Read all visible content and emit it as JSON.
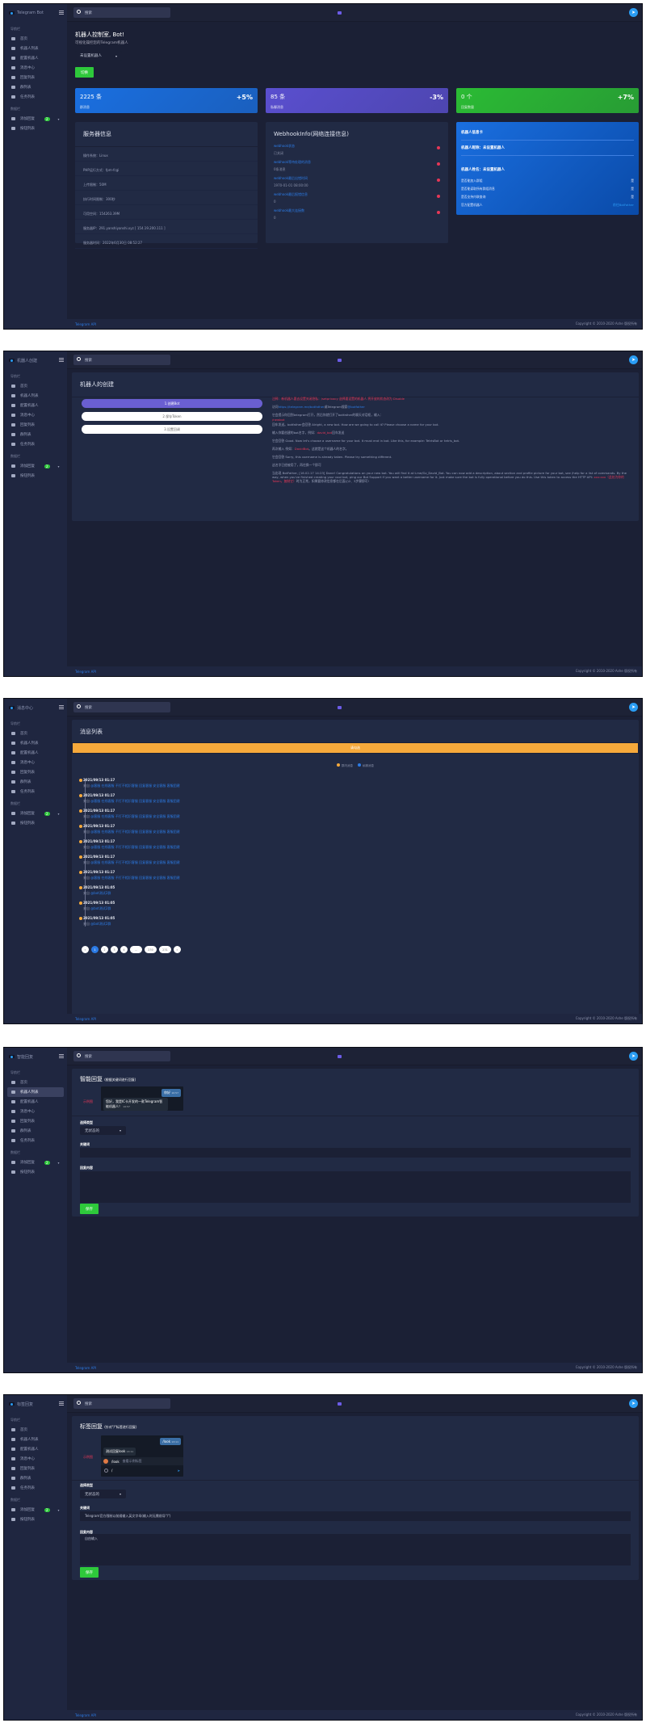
{
  "sidebar": {
    "section1": "导航栏",
    "section2": "数据栏",
    "items": [
      {
        "label": "首页",
        "icon": "robot-icon"
      },
      {
        "label": "机器人列表",
        "icon": "gear-circle-icon"
      },
      {
        "label": "配置机器人",
        "icon": "cogs-icon"
      },
      {
        "label": "消息中心",
        "icon": "message-icon"
      },
      {
        "label": "回复列表",
        "icon": "keyboard-icon"
      },
      {
        "label": "群列表",
        "icon": "group-icon"
      },
      {
        "label": "任务列表",
        "icon": "hourglass-icon"
      }
    ],
    "items2": [
      {
        "label": "添加回复",
        "icon": "chat-icon",
        "badge": "2"
      },
      {
        "label": "按钮列表",
        "icon": "note-icon"
      }
    ]
  },
  "topbar": {
    "search_placeholder": "搜索"
  },
  "footer": {
    "api": "Telegram API",
    "copyright": "Copyright © 2010-2020 Ashe 版权所有"
  },
  "screens": [
    {
      "brand": "Telegram Bot"
    },
    {
      "brand": "机器人创建"
    },
    {
      "brand": "消息中心"
    },
    {
      "brand": "智能回复",
      "active": 1
    },
    {
      "brand": "标签回复"
    }
  ],
  "dashboard": {
    "title": "机器人控制室, Bot!",
    "subtitle": "可视化操控您的Telegram机器人",
    "select_value": "未设置机器人",
    "switch_button": "切换",
    "stats": [
      {
        "value": "2225 条",
        "label": "群消息",
        "pct": "+5%",
        "color": "#1a6fe0"
      },
      {
        "value": "85 条",
        "label": "私聊消息",
        "pct": "-3%",
        "color": "#5a4fcf"
      },
      {
        "value": "0 个",
        "label": "回复数量",
        "pct": "+7%",
        "color": "#2bbb34"
      }
    ],
    "server": {
      "title": "服务器信息",
      "rows": [
        "操作系统：Linux",
        "PHP运行方式：fpm-fcgi",
        "上传限制：50M",
        "执行时间限制：300秒",
        "可用空间：154263.39M",
        "服务器IP：291.yanshiyanshi.xyz [ 154.19.200.111 ]",
        "服务器时间：2022年6月30日 08:52:27"
      ]
    },
    "webhook": {
      "title": "WebhookInfo(网络连接信息)",
      "items": [
        {
          "key": "webhook状态",
          "value": "已关闭"
        },
        {
          "key": "webhook等待处理的消息",
          "value": "0条消息"
        },
        {
          "key": "webhook最后出错时间",
          "value": "1970-01-01 08:00:00"
        },
        {
          "key": "webhook最后报错信息",
          "value": "0"
        },
        {
          "key": "webhook最大连接数",
          "value": "0"
        }
      ]
    },
    "botcard": {
      "title": "机器人信息卡",
      "nickname": "机器人昵称：未设置机器人",
      "name": "机器人姓名：未设置机器人",
      "rows": [
        {
          "label": "是否能加入群组",
          "value": "是"
        },
        {
          "label": "是否能读取所有群组消息",
          "value": "是"
        },
        {
          "label": "是否支持内联查询",
          "value": "是"
        },
        {
          "label": "官方配置机器人",
          "value": "前往BotFather"
        }
      ]
    }
  },
  "create": {
    "title": "机器人的创建",
    "steps": [
      "1.创建Bot",
      "2.保存Token",
      "3.设置回调"
    ],
    "notice": "注释：新机器人要去设置关闭隐私：/setprivacy 选择要设置的机器人 将开放的状态改为 Disable",
    "visit_pre": "访问",
    "visit_link": "https://telegram.me/botfather",
    "visit_mid": "或Telegram搜索",
    "visit_link2": "@botfather",
    "p1": "它会提示你回到telegram打开，然后你就打开了botfather的聊天对话框，输入：",
    "cmd": "/newbot",
    "p2": "回车发送。botfather会回答 Alright, a new bot. How are we going to call it? Please choose a name for your bot.",
    "p3_pre": "输入你要创建的bot名字，例如：",
    "p3_red": "david_bot",
    "p3_post": "回车发送",
    "p4": "它会回答 Good. Now let's choose a username for your bot. It must end in bot. Like this, for example: TetrisBot or tetris_bot.",
    "p5_pre": "再次输入 例如：",
    "p5_red": "DavidBot",
    "p5_post": "。这就是这个机器人的名字。",
    "p6": "它会回答 Sorry, this username is already taken. Please try something different.",
    "p7": "这名字已经被用了，再往换一个即可",
    "p8": "当出现 BotFather, [16.02.17 14:23] Done! Congratulations on your new bot. You will find it at t.me/Gz_David_Bot. You can now add a description, about section and profile picture for your bot, see /help for a list of commands. By the way, when you've finished creating your cool bot, ping our Bot Support if you want a better username for it. Just make sure the bot is fully operational before you do this. Use this token to access the HTTP API:",
    "p8_red": "xxx:xxx（此处为你的Token，复制它）",
    "p8_post": "时为正常，如果要修改信息都在后面(/)2、3步骤即可!"
  },
  "messages": {
    "title": "消息列表",
    "banner": "请勾选",
    "legend": [
      {
        "label": "群内消息",
        "color": "#f6a93b"
      },
      {
        "label": "私聊消息",
        "color": "#2c7be5"
      }
    ],
    "items": [
      {
        "time": "2021/09/13 01:17",
        "from": "来自",
        "content": "@客服 在线客服 不打不相识客服 回复客服 安全客服 客服团建"
      },
      {
        "time": "2021/09/13 01:17",
        "from": "来自",
        "content": "@客服 在线客服 不打不相识客服 回复客服 安全客服 客服团建"
      },
      {
        "time": "2021/09/13 01:17",
        "from": "来自",
        "content": "@客服 在线客服 不打不相识客服 回复客服 安全客服 客服团建"
      },
      {
        "time": "2021/09/13 01:17",
        "from": "来自",
        "content": "@客服 在线客服 不打不相识客服 回复客服 安全客服 客服团建"
      },
      {
        "time": "2021/09/13 01:17",
        "from": "来自",
        "content": "@客服 在线客服 不打不相识客服 回复客服 安全客服 客服团建"
      },
      {
        "time": "2021/09/13 01:17",
        "from": "来自",
        "content": "@客服 在线客服 不打不相识客服 回复客服 安全客服 客服团建"
      },
      {
        "time": "2021/09/13 01:17",
        "from": "来自",
        "content": "@客服 在线客服 不打不相识客服 回复客服 安全客服 客服团建"
      },
      {
        "time": "2021/09/13 01:05",
        "from": "来自",
        "content": "@bot测试2群"
      },
      {
        "time": "2021/09/13 01:05",
        "from": "来自",
        "content": "@bot测试2群"
      },
      {
        "time": "2021/09/13 01:05",
        "from": "来自",
        "content": "@bot测试2群"
      }
    ],
    "pages": [
      "«",
      "1",
      "2",
      "3",
      "4",
      "...",
      "230",
      "231",
      "»"
    ],
    "current_page": "1"
  },
  "smart_reply": {
    "title": "智能回复",
    "subtitle": "(根据关键词进行回复)",
    "example": "示例图",
    "chat_out": "你好",
    "chat_out_time": "10:57",
    "chat_in": "您好，我是IC卡开发的一款Telegram智能机器人！",
    "chat_in_time": "10:57",
    "type_label": "选择类型",
    "type_value": "无状态的",
    "keyword_label": "关键词",
    "keyword_value": "",
    "content_label": "回复内容",
    "content_value": "",
    "save": "保存"
  },
  "tag_reply": {
    "title": "标签回复",
    "subtitle": "(针对\"/\"标签进行回复)",
    "example": "示例图",
    "chat_out": "/look",
    "chat_out_time": "13:11",
    "chat_in": "测试回复look",
    "chat_in_time": "13:11",
    "suggest_cmd": "/look",
    "suggest_desc": "查看示例标签",
    "input_value": "/",
    "type_label": "选择类型",
    "type_value": "无状态的",
    "keyword_label": "关键词",
    "keyword_value": "Telegram官方限制以前缀输入英文字母(输入时无需前导\"/\")",
    "content_label": "回复内容",
    "content_value": "自由输入",
    "save": "保存"
  }
}
